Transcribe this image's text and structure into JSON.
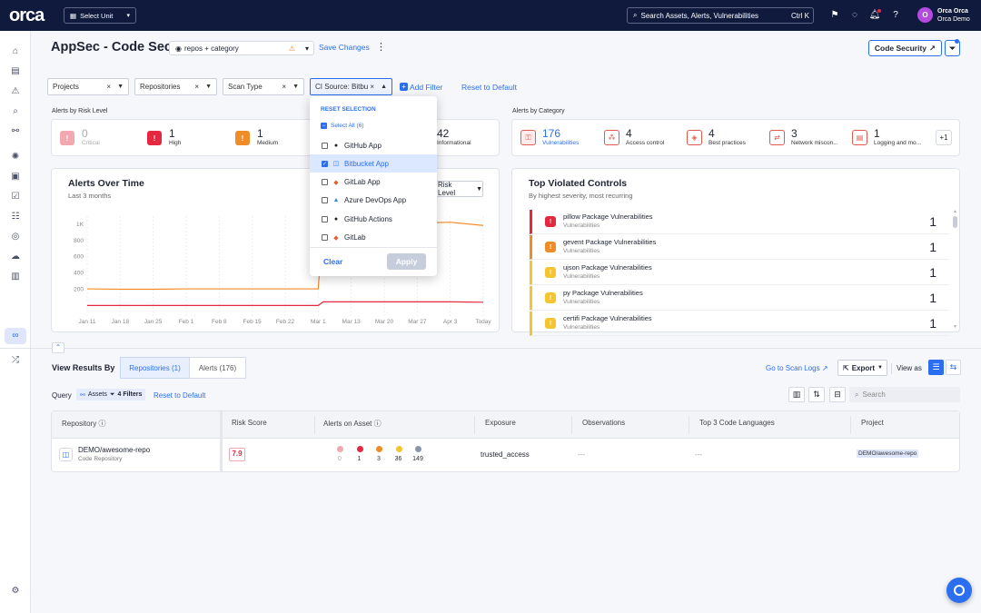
{
  "topbar": {
    "logo": "orca",
    "select_unit": "Select Unit",
    "search_placeholder": "Search Assets, Alerts, Vulnerabilities",
    "search_shortcut": "Ctrl K",
    "user_initial": "O",
    "user_name": "Orca Orca",
    "user_org": "Orca Demo"
  },
  "page": {
    "title": "AppSec - Code Security 2.0",
    "view_selector": "repos + category",
    "save_changes": "Save Changes",
    "code_security_btn": "Code Security"
  },
  "filters": {
    "items": [
      {
        "label": "Projects"
      },
      {
        "label": "Repositories"
      },
      {
        "label": "Scan Type"
      },
      {
        "label": "CI Source: Bitbu"
      }
    ],
    "add_filter": "Add Filter",
    "reset": "Reset to Default"
  },
  "dropdown": {
    "reset_selection": "RESET SELECTION",
    "select_all": "Select All (6)",
    "options": [
      {
        "label": "GitHub App",
        "checked": false,
        "icon": "github-icon"
      },
      {
        "label": "Bitbucket App",
        "checked": true,
        "icon": "bitbucket-icon"
      },
      {
        "label": "GitLab App",
        "checked": false,
        "icon": "gitlab-icon"
      },
      {
        "label": "Azure DevOps App",
        "checked": false,
        "icon": "azure-icon"
      },
      {
        "label": "GitHub Actions",
        "checked": false,
        "icon": "github-icon"
      },
      {
        "label": "GitLab",
        "checked": false,
        "icon": "gitlab-icon"
      }
    ],
    "clear": "Clear",
    "apply": "Apply"
  },
  "risk": {
    "label": "Alerts by Risk Level",
    "items": [
      {
        "count": "0",
        "label": "Critical",
        "color": "#f2a8b0"
      },
      {
        "count": "1",
        "label": "High",
        "color": "#e5273f"
      },
      {
        "count": "1",
        "label": "Medium",
        "color": "#f08c28"
      },
      {
        "count": "42",
        "label": "Informational",
        "color": "#8b95a8"
      }
    ]
  },
  "category": {
    "label": "Alerts by Category",
    "items": [
      {
        "count": "176",
        "label": "Vulnerabilities",
        "icon": "vulnerability-icon"
      },
      {
        "count": "4",
        "label": "Access control",
        "icon": "access-control-icon"
      },
      {
        "count": "4",
        "label": "Best practices",
        "icon": "best-practices-icon"
      },
      {
        "count": "3",
        "label": "Network miscon...",
        "icon": "network-icon"
      },
      {
        "count": "1",
        "label": "Logging and mo...",
        "icon": "logging-icon"
      }
    ],
    "more": "+1"
  },
  "alerts_chart": {
    "title": "Alerts Over Time",
    "subtitle": "Last 3 months",
    "group_by": "Risk Level",
    "yticks": [
      "1K",
      "800",
      "600",
      "400",
      "200"
    ],
    "xticks": [
      "Jan 11",
      "Jan 18",
      "Jan 25",
      "Feb 1",
      "Feb 8",
      "Feb 15",
      "Feb 22",
      "Mar 1",
      "Mar 13",
      "Mar 20",
      "Mar 27",
      "Apr 3",
      "Today"
    ]
  },
  "chart_data": {
    "type": "line",
    "x": [
      "Jan 11",
      "Jan 18",
      "Jan 25",
      "Feb 1",
      "Feb 8",
      "Feb 15",
      "Feb 22",
      "Mar 1",
      "Mar 4",
      "Mar 13",
      "Mar 20",
      "Mar 27",
      "Apr 3",
      "Today"
    ],
    "series": [
      {
        "values": [
          205,
          200,
          200,
          205,
          205,
          205,
          205,
          205,
          1010,
          1010,
          1010,
          1015,
          1025,
          985
        ],
        "color": "#f08c28"
      },
      {
        "values": [
          0,
          0,
          0,
          0,
          0,
          0,
          0,
          0,
          45,
          45,
          45,
          45,
          45,
          40
        ],
        "color": "#e5273f"
      }
    ],
    "ylim": [
      -130,
      1100
    ],
    "yticks": [
      200,
      400,
      600,
      800,
      1000
    ],
    "grid": true
  },
  "violated": {
    "title": "Top Violated Controls",
    "subtitle": "By highest severity, most recurring",
    "items": [
      {
        "name": "pillow Package Vulnerabilities",
        "sub": "Vulnerabilities",
        "count": "1",
        "color": "#e5273f"
      },
      {
        "name": "gevent Package Vulnerabilities",
        "sub": "Vulnerabilities",
        "count": "1",
        "color": "#f08c28"
      },
      {
        "name": "ujson Package Vulnerabilities",
        "sub": "Vulnerabilities",
        "count": "1",
        "color": "#f5c431"
      },
      {
        "name": "py Package Vulnerabilities",
        "sub": "Vulnerabilities",
        "count": "1",
        "color": "#f5c431"
      },
      {
        "name": "certifi Package Vulnerabilities",
        "sub": "Vulnerabilities",
        "count": "1",
        "color": "#f5c431"
      }
    ]
  },
  "results": {
    "view_by": "View Results By",
    "tab_repos": "Repositories (1)",
    "tab_alerts": "Alerts (176)",
    "scan_logs": "Go to Scan Logs",
    "export": "Export",
    "view_as": "View as",
    "query": "Query",
    "query_assets": "Assets",
    "query_filters": "4 Filters",
    "reset": "Reset to Default",
    "search_placeholder": "Search",
    "columns": [
      "Repository",
      "Risk Score",
      "Alerts on Asset",
      "Exposure",
      "Observations",
      "Top 3 Code Languages",
      "Project"
    ],
    "row": {
      "name": "DEMO/awesome-repo",
      "type": "Code Repository",
      "score": "7.9",
      "alerts": [
        "0",
        "1",
        "3",
        "36",
        "149"
      ],
      "exposure": "trusted_access",
      "observations": "---",
      "languages": "---",
      "project": "DEMO/awesome-repo"
    }
  }
}
